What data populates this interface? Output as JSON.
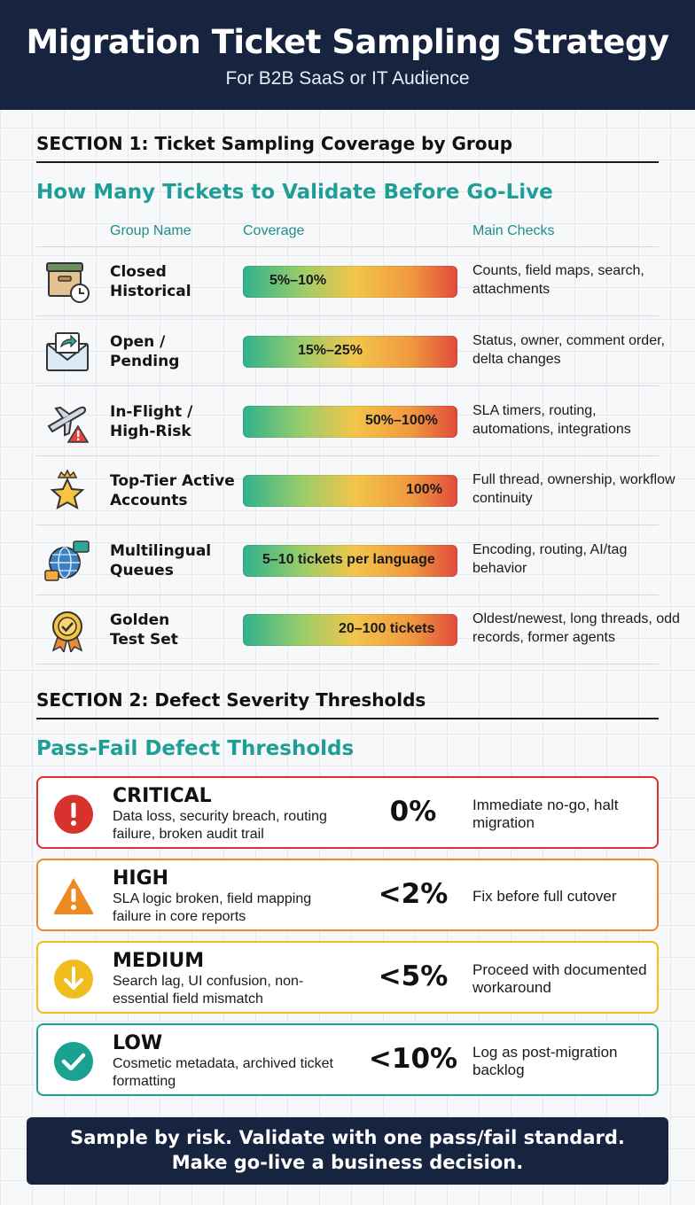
{
  "header": {
    "title": "Migration Ticket Sampling Strategy",
    "subtitle": "For B2B SaaS or IT Audience"
  },
  "section1": {
    "title": "SECTION 1: Ticket Sampling Coverage by Group",
    "subtitle": "How Many Tickets to Validate Before Go-Live",
    "columns": {
      "group": "Group Name",
      "coverage": "Coverage",
      "checks": "Main Checks"
    },
    "rows": [
      {
        "icon": "archive-box-clock-icon",
        "name_line1": "Closed",
        "name_line2": "Historical",
        "coverage": "5%–10%",
        "checks": "Counts, field maps, search, attachments"
      },
      {
        "icon": "envelope-forward-icon",
        "name_line1": "Open /",
        "name_line2": "Pending",
        "coverage": "15%–25%",
        "checks": "Status, owner, comment order, delta changes"
      },
      {
        "icon": "airplane-warning-icon",
        "name_line1": "In-Flight /",
        "name_line2": "High-Risk",
        "coverage": "50%–100%",
        "checks": "SLA timers, routing, automations, integrations"
      },
      {
        "icon": "star-crown-icon",
        "name_line1": "Top-Tier Active",
        "name_line2": "Accounts",
        "coverage": "100%",
        "checks": "Full thread, ownership, workflow continuity"
      },
      {
        "icon": "globe-chat-icon",
        "name_line1": "Multilingual",
        "name_line2": "Queues",
        "coverage": "5–10 tickets per language",
        "checks": "Encoding, routing, AI/tag behavior"
      },
      {
        "icon": "award-badge-icon",
        "name_line1": "Golden",
        "name_line2": "Test Set",
        "coverage": "20–100 tickets",
        "checks": "Oldest/newest, long threads, odd records, former agents"
      }
    ]
  },
  "section2": {
    "title": "SECTION 2: Defect Severity Thresholds",
    "subtitle": "Pass-Fail Defect Thresholds",
    "levels": [
      {
        "icon": "exclamation-circle-icon",
        "level": "CRITICAL",
        "description": "Data loss, security breach, routing failure, broken audit trail",
        "threshold": "0%",
        "action": "Immediate no-go, halt migration",
        "color": "#d8322f"
      },
      {
        "icon": "warning-triangle-icon",
        "level": "HIGH",
        "description": "SLA logic broken, field mapping failure in core reports",
        "threshold": "<2%",
        "action": "Fix before full cutover",
        "color": "#ee8a24"
      },
      {
        "icon": "arrow-down-circle-icon",
        "level": "MEDIUM",
        "description": "Search lag, UI confusion, non-essential field mismatch",
        "threshold": "<5%",
        "action": "Proceed with documented workaround",
        "color": "#f0bd1f"
      },
      {
        "icon": "check-circle-icon",
        "level": "LOW",
        "description": "Cosmetic metadata, archived ticket formatting",
        "threshold": "<10%",
        "action": "Log as post-migration backlog",
        "color": "#1aa192"
      }
    ]
  },
  "footer": {
    "line1": "Sample by risk. Validate with one pass/fail standard.",
    "line2": "Make go-live a business decision."
  }
}
